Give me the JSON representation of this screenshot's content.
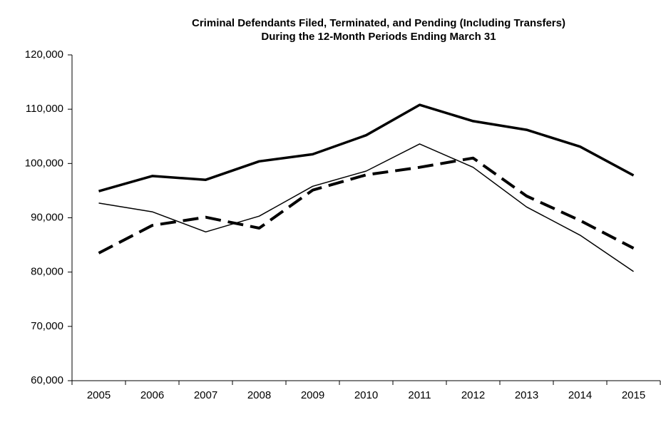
{
  "chart_data": {
    "type": "line",
    "title": "Criminal Defendants Filed, Terminated, and Pending (Including Transfers)",
    "subtitle": "During the 12-Month Periods Ending March 31",
    "categories": [
      "2005",
      "2006",
      "2007",
      "2008",
      "2009",
      "2010",
      "2011",
      "2012",
      "2013",
      "2014",
      "2015"
    ],
    "series": [
      {
        "color": "#000000",
        "width": 3.5,
        "dash": "solid",
        "values": [
          94900,
          97700,
          97000,
          100400,
          101700,
          105200,
          110800,
          107800,
          106200,
          103100,
          97800
        ]
      },
      {
        "color": "#000000",
        "width": 1.5,
        "dash": "solid",
        "values": [
          92700,
          91100,
          87400,
          90300,
          95800,
          98600,
          103600,
          99300,
          92000,
          86800,
          80100
        ]
      },
      {
        "color": "#000000",
        "width": 4,
        "dash": "dashed",
        "values": [
          83500,
          88600,
          90100,
          88100,
          95100,
          97900,
          99300,
          101000,
          94000,
          89500,
          84400
        ]
      }
    ],
    "ylim": [
      60000,
      120000
    ],
    "yticks": [
      {
        "value": 60000,
        "label": "60,000"
      },
      {
        "value": 70000,
        "label": "70,000"
      },
      {
        "value": 80000,
        "label": "80,000"
      },
      {
        "value": 90000,
        "label": "90,000"
      },
      {
        "value": 100000,
        "label": "100,000"
      },
      {
        "value": 110000,
        "label": "110,000"
      },
      {
        "value": 120000,
        "label": "120,000"
      }
    ],
    "grid": false
  }
}
